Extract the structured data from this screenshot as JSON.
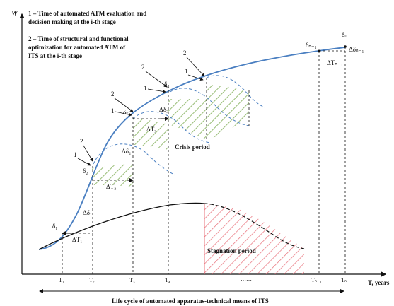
{
  "legend": {
    "line1": "1 – Time of automated ATM evaluation and",
    "line2": "decision making at the i-th stage",
    "line3": "2 – Time of structural and functional",
    "line4": "optimization for automated ATM of",
    "line5": "ITS at the i-th stage"
  },
  "axes": {
    "y_label": "W",
    "x_label": "T, years",
    "ticks": [
      "T₁",
      "T₂",
      "T₃",
      "T₄",
      "Tₙ₋₁",
      "Tₙ"
    ],
    "ellipsis": "……"
  },
  "regions": {
    "crisis": "Crisis period",
    "stagnation": "Stagnation period"
  },
  "lifecycle": "Life cycle of automated apparatus-technical means of ITS",
  "points": {
    "d1": "δ₁",
    "d2": "δ₂",
    "dk": "δₖ",
    "d4": "δ₄",
    "dn1": "δₙ₋₁",
    "dn": "δₙ"
  },
  "deltas": {
    "dd1": "Δδ₁",
    "dd2": "Δδ₂",
    "dd3": "Δδ₃",
    "ddn1": "Δδₙ₋₁",
    "dT1": "ΔT₁",
    "dT2": "ΔT₂",
    "dT3": "ΔT₃",
    "dTn1": "ΔTₙ₋₁"
  },
  "markers": {
    "one": "1",
    "two": "2"
  },
  "colors": {
    "curve": "#4a7fc1",
    "hatch_green": "#9bbf7a",
    "hatch_red": "#e8707a",
    "axis": "#111111"
  }
}
